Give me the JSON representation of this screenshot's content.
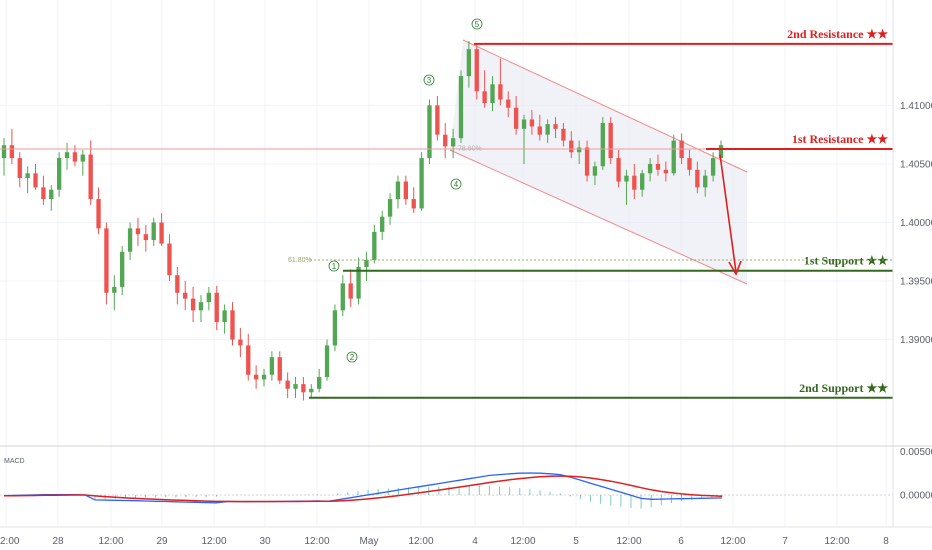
{
  "chart_data": {
    "type": "candlestick",
    "price_axis": {
      "range": [
        1.381,
        1.419
      ],
      "ticks": [
        "1.41000",
        "1.40500",
        "1.40000",
        "1.39500",
        "1.39000"
      ]
    },
    "time_axis": {
      "labels": [
        "2:00",
        "28",
        "12:00",
        "29",
        "12:00",
        "30",
        "12:00",
        "May",
        "12:00",
        "4",
        "12:00",
        "5",
        "12:00",
        "6",
        "12:00",
        "7",
        "12:00",
        "8"
      ]
    },
    "levels": [
      {
        "name": "2nd Resistance ★★",
        "value": 1.41525,
        "tag": "1.41525",
        "color": "#e01e1e"
      },
      {
        "name": "1st Resistance ★★",
        "value": 1.40628,
        "tag": "1.40628",
        "color": "#e01e1e"
      },
      {
        "name": "1st Support ★★",
        "value": 1.39588,
        "tag": "1.39588",
        "color": "#33691e"
      },
      {
        "name": "2nd Support ★★",
        "value": 1.38503,
        "tag": "1.38503",
        "color": "#33691e"
      }
    ],
    "fib": {
      "label": "61.80%",
      "value": 1.3968
    },
    "fib_small": {
      "label": "78.60%",
      "value": 1.4063
    },
    "wave_labels": [
      "1",
      "2",
      "3",
      "4",
      "5"
    ],
    "macd": {
      "label": "MACD",
      "ticks": [
        "0.00500",
        "0.00000"
      ]
    },
    "candles": [
      [
        1.4055,
        1.4072,
        1.404,
        1.4066
      ],
      [
        1.4066,
        1.408,
        1.405,
        1.4055
      ],
      [
        1.4055,
        1.406,
        1.403,
        1.4038
      ],
      [
        1.4038,
        1.4048,
        1.4025,
        1.4042
      ],
      [
        1.4042,
        1.405,
        1.4028,
        1.403
      ],
      [
        1.403,
        1.404,
        1.4015,
        1.402
      ],
      [
        1.402,
        1.4032,
        1.401,
        1.4028
      ],
      [
        1.4028,
        1.406,
        1.4022,
        1.4055
      ],
      [
        1.4055,
        1.4068,
        1.4045,
        1.406
      ],
      [
        1.406,
        1.4066,
        1.4048,
        1.4052
      ],
      [
        1.4052,
        1.4062,
        1.404,
        1.4058
      ],
      [
        1.4058,
        1.407,
        1.4015,
        1.402
      ],
      [
        1.402,
        1.403,
        1.399,
        1.3995
      ],
      [
        1.3995,
        1.4,
        1.393,
        1.394
      ],
      [
        1.394,
        1.3955,
        1.3925,
        1.3945
      ],
      [
        1.3945,
        1.398,
        1.3938,
        1.3975
      ],
      [
        1.3975,
        1.4,
        1.3968,
        1.3995
      ],
      [
        1.3995,
        1.4004,
        1.398,
        1.399
      ],
      [
        1.399,
        1.3998,
        1.3975,
        1.3985
      ],
      [
        1.3985,
        1.4004,
        1.398,
        1.4
      ],
      [
        1.4,
        1.4008,
        1.398,
        1.3982
      ],
      [
        1.3982,
        1.399,
        1.395,
        1.3955
      ],
      [
        1.3955,
        1.3962,
        1.393,
        1.394
      ],
      [
        1.394,
        1.395,
        1.3925,
        1.3935
      ],
      [
        1.3935,
        1.3945,
        1.3915,
        1.3925
      ],
      [
        1.3925,
        1.3938,
        1.3915,
        1.3932
      ],
      [
        1.3932,
        1.3945,
        1.3925,
        1.394
      ],
      [
        1.394,
        1.3946,
        1.3908,
        1.3915
      ],
      [
        1.3915,
        1.393,
        1.3905,
        1.3925
      ],
      [
        1.3925,
        1.3932,
        1.3895,
        1.39
      ],
      [
        1.39,
        1.391,
        1.3885,
        1.3895
      ],
      [
        1.3895,
        1.3905,
        1.3865,
        1.387
      ],
      [
        1.387,
        1.3878,
        1.3858,
        1.3866
      ],
      [
        1.3866,
        1.3875,
        1.386,
        1.387
      ],
      [
        1.387,
        1.389,
        1.3865,
        1.3885
      ],
      [
        1.3885,
        1.389,
        1.3862,
        1.3865
      ],
      [
        1.3865,
        1.3872,
        1.385,
        1.3858
      ],
      [
        1.3858,
        1.3868,
        1.385,
        1.3862
      ],
      [
        1.3862,
        1.3868,
        1.3848,
        1.3855
      ],
      [
        1.3855,
        1.3862,
        1.385,
        1.3858
      ],
      [
        1.3858,
        1.3875,
        1.3855,
        1.3868
      ],
      [
        1.3868,
        1.39,
        1.3865,
        1.3895
      ],
      [
        1.3895,
        1.393,
        1.389,
        1.3925
      ],
      [
        1.3925,
        1.3955,
        1.392,
        1.3948
      ],
      [
        1.3948,
        1.396,
        1.3928,
        1.3935
      ],
      [
        1.3935,
        1.397,
        1.393,
        1.3962
      ],
      [
        1.3962,
        1.3975,
        1.395,
        1.3968
      ],
      [
        1.3968,
        1.3998,
        1.3965,
        1.3992
      ],
      [
        1.3992,
        1.401,
        1.3985,
        1.4005
      ],
      [
        1.4005,
        1.4025,
        1.3998,
        1.402
      ],
      [
        1.402,
        1.404,
        1.4012,
        1.4035
      ],
      [
        1.4035,
        1.404,
        1.4015,
        1.402
      ],
      [
        1.402,
        1.403,
        1.4008,
        1.4012
      ],
      [
        1.4012,
        1.406,
        1.401,
        1.4055
      ],
      [
        1.4055,
        1.4105,
        1.405,
        1.41
      ],
      [
        1.41,
        1.4108,
        1.407,
        1.4075
      ],
      [
        1.4075,
        1.4085,
        1.4055,
        1.4065
      ],
      [
        1.4065,
        1.408,
        1.4055,
        1.4072
      ],
      [
        1.4072,
        1.413,
        1.4068,
        1.4125
      ],
      [
        1.4125,
        1.4155,
        1.4115,
        1.4148
      ],
      [
        1.4148,
        1.4152,
        1.4105,
        1.4112
      ],
      [
        1.4112,
        1.413,
        1.4098,
        1.4102
      ],
      [
        1.4102,
        1.4125,
        1.4095,
        1.4118
      ],
      [
        1.4118,
        1.414,
        1.41,
        1.4105
      ],
      [
        1.4105,
        1.4112,
        1.409,
        1.4098
      ],
      [
        1.4098,
        1.4108,
        1.4075,
        1.408
      ],
      [
        1.408,
        1.4092,
        1.405,
        1.4088
      ],
      [
        1.4088,
        1.4096,
        1.4075,
        1.4082
      ],
      [
        1.4082,
        1.4092,
        1.407,
        1.4075
      ],
      [
        1.4075,
        1.4088,
        1.4068,
        1.4084
      ],
      [
        1.4084,
        1.409,
        1.4072,
        1.408
      ],
      [
        1.408,
        1.4085,
        1.4065,
        1.407
      ],
      [
        1.407,
        1.4078,
        1.4055,
        1.406
      ],
      [
        1.406,
        1.407,
        1.405,
        1.4064
      ],
      [
        1.4064,
        1.407,
        1.4035,
        1.404
      ],
      [
        1.404,
        1.4052,
        1.4032,
        1.4048
      ],
      [
        1.4048,
        1.409,
        1.4045,
        1.4085
      ],
      [
        1.4085,
        1.409,
        1.405,
        1.4055
      ],
      [
        1.4055,
        1.4062,
        1.403,
        1.4035
      ],
      [
        1.4035,
        1.4045,
        1.4015,
        1.404
      ],
      [
        1.404,
        1.405,
        1.402,
        1.4028
      ],
      [
        1.4028,
        1.4045,
        1.4022,
        1.4042
      ],
      [
        1.4042,
        1.4055,
        1.4035,
        1.405
      ],
      [
        1.405,
        1.4058,
        1.404,
        1.4045
      ],
      [
        1.4045,
        1.4052,
        1.4035,
        1.4042
      ],
      [
        1.4042,
        1.4075,
        1.404,
        1.407
      ],
      [
        1.407,
        1.4076,
        1.405,
        1.4055
      ],
      [
        1.4055,
        1.4062,
        1.404,
        1.4045
      ],
      [
        1.4045,
        1.4052,
        1.4025,
        1.403
      ],
      [
        1.403,
        1.4045,
        1.4022,
        1.404
      ],
      [
        1.404,
        1.406,
        1.4035,
        1.4055
      ],
      [
        1.4055,
        1.407,
        1.405,
        1.4066
      ]
    ]
  }
}
